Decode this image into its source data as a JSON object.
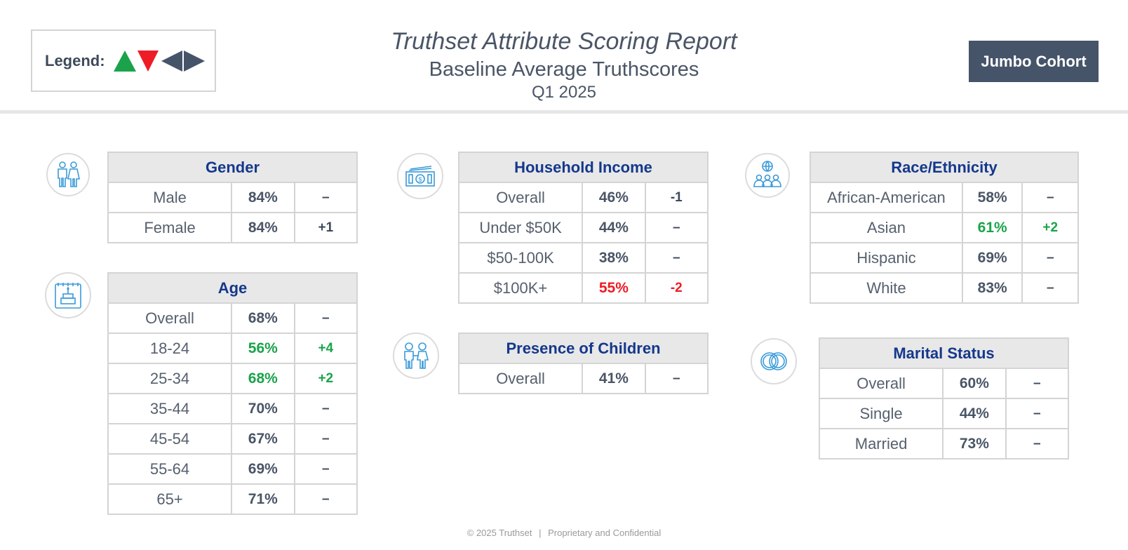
{
  "legend": {
    "label": "Legend:"
  },
  "header": {
    "title": "Truthset Attribute Scoring Report",
    "subtitle": "Baseline Average Truthscores",
    "period": "Q1 2025",
    "cohort": "Jumbo Cohort"
  },
  "colors": {
    "up": "#1aa34a",
    "down": "#ee1c25",
    "header_fill": "#e8e8e8",
    "title_blue": "#15388c",
    "slate": "#46546a",
    "icon_blue": "#3a9ad9"
  },
  "icons": {
    "gender": "gender-icon",
    "age": "birthday-cake-icon",
    "income": "money-bill-icon",
    "children": "children-icon",
    "race": "people-group-icon",
    "marital": "wedding-rings-icon"
  },
  "tables": {
    "gender": {
      "title": "Gender",
      "rows": [
        {
          "label": "Male",
          "value": "84%",
          "change": "–"
        },
        {
          "label": "Female",
          "value": "84%",
          "change": "+1"
        }
      ]
    },
    "age": {
      "title": "Age",
      "rows": [
        {
          "label": "Overall",
          "value": "68%",
          "change": "–"
        },
        {
          "label": "18-24",
          "value": "56%",
          "change": "+4"
        },
        {
          "label": "25-34",
          "value": "68%",
          "change": "+2"
        },
        {
          "label": "35-44",
          "value": "70%",
          "change": "–"
        },
        {
          "label": "45-54",
          "value": "67%",
          "change": "–"
        },
        {
          "label": "55-64",
          "value": "69%",
          "change": "–"
        },
        {
          "label": "65+",
          "value": "71%",
          "change": "–"
        }
      ]
    },
    "income": {
      "title": "Household Income",
      "rows": [
        {
          "label": "Overall",
          "value": "46%",
          "change": "-1"
        },
        {
          "label": "Under $50K",
          "value": "44%",
          "change": "–"
        },
        {
          "label": "$50-100K",
          "value": "38%",
          "change": "–"
        },
        {
          "label": "$100K+",
          "value": "55%",
          "change": "-2"
        }
      ]
    },
    "children": {
      "title": "Presence of Children",
      "rows": [
        {
          "label": "Overall",
          "value": "41%",
          "change": "–"
        }
      ]
    },
    "race": {
      "title": "Race/Ethnicity",
      "rows": [
        {
          "label": "African-American",
          "value": "58%",
          "change": "–"
        },
        {
          "label": "Asian",
          "value": "61%",
          "change": "+2"
        },
        {
          "label": "Hispanic",
          "value": "69%",
          "change": "–"
        },
        {
          "label": "White",
          "value": "83%",
          "change": "–"
        }
      ]
    },
    "marital": {
      "title": "Marital Status",
      "rows": [
        {
          "label": "Overall",
          "value": "60%",
          "change": "–"
        },
        {
          "label": "Single",
          "value": "44%",
          "change": "–"
        },
        {
          "label": "Married",
          "value": "73%",
          "change": "–"
        }
      ]
    }
  },
  "footer": {
    "copyright": "© 2025 Truthset",
    "separator": "|",
    "notice": "Proprietary and Confidential"
  }
}
